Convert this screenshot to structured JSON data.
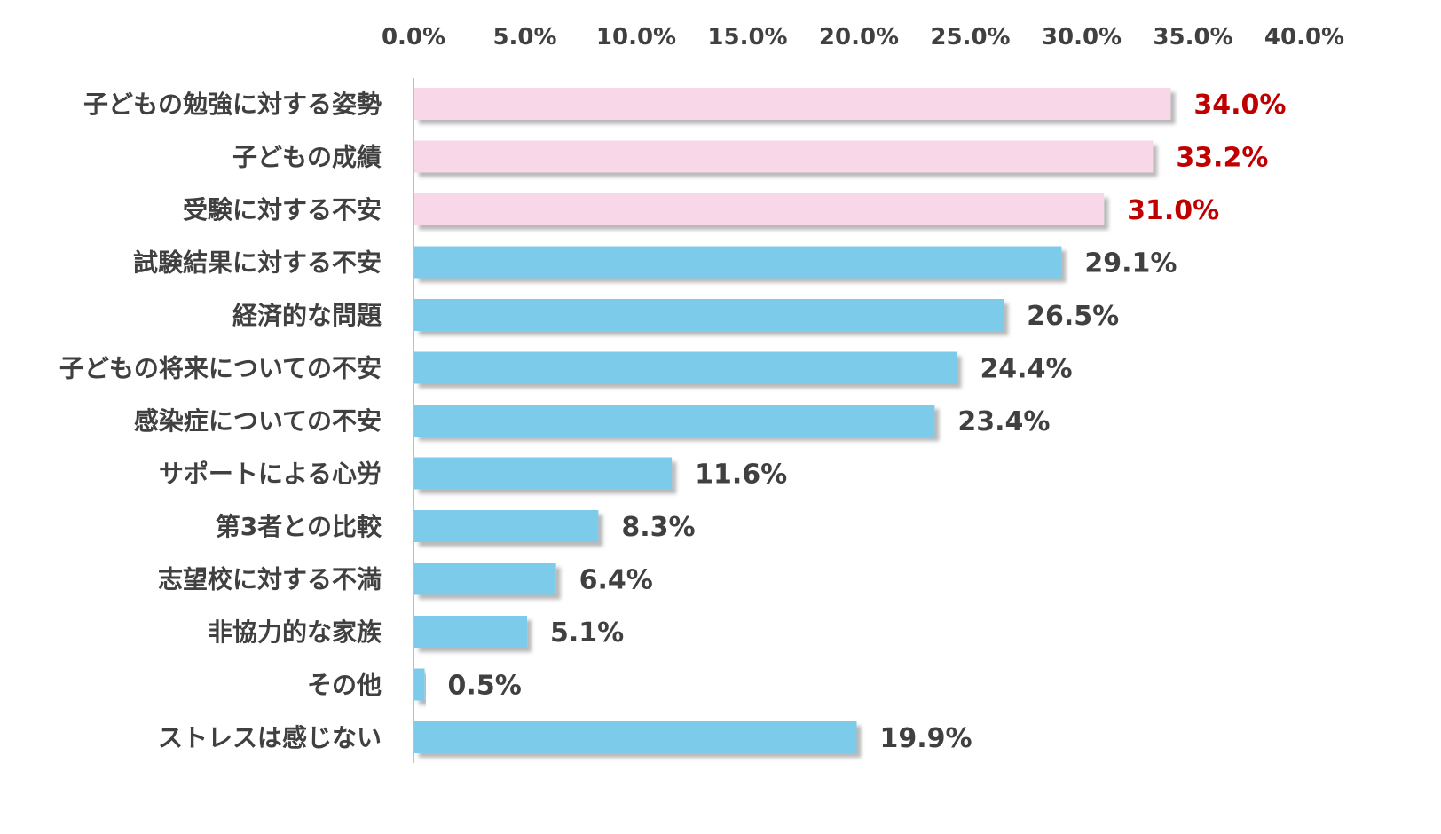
{
  "chart_data": {
    "type": "bar",
    "orientation": "horizontal",
    "title": "",
    "xlabel": "",
    "ylabel": "",
    "xlim": [
      0,
      40
    ],
    "x_ticks": [
      "0.0%",
      "5.0%",
      "10.0%",
      "15.0%",
      "20.0%",
      "25.0%",
      "30.0%",
      "35.0%",
      "40.0%"
    ],
    "x_tick_values": [
      0,
      5,
      10,
      15,
      20,
      25,
      30,
      35,
      40
    ],
    "grid": false,
    "legend": "none",
    "categories": [
      "子どもの勉強に対する姿勢",
      "子どもの成績",
      "受験に対する不安",
      "試験結果に対する不安",
      "経済的な問題",
      "子どもの将来についての不安",
      "感染症についての不安",
      "サポートによる心労",
      "第3者との比較",
      "志望校に対する不満",
      "非協力的な家族",
      "その他",
      "ストレスは感じない"
    ],
    "values": [
      34.0,
      33.2,
      31.0,
      29.1,
      26.5,
      24.4,
      23.4,
      11.6,
      8.3,
      6.4,
      5.1,
      0.5,
      19.9
    ],
    "value_labels": [
      "34.0%",
      "33.2%",
      "31.0%",
      "29.1%",
      "26.5%",
      "24.4%",
      "23.4%",
      "11.6%",
      "8.3%",
      "6.4%",
      "5.1%",
      "0.5%",
      "19.9%"
    ],
    "highlighted": [
      true,
      true,
      true,
      false,
      false,
      false,
      false,
      false,
      false,
      false,
      false,
      false,
      false
    ]
  },
  "colors": {
    "highlight_bar": "#f8d7e8",
    "normal_bar": "#7ccbea",
    "highlight_label": "#c00000",
    "normal_label": "#404040",
    "axis_line": "#bfbfbf",
    "text": "#404040"
  }
}
